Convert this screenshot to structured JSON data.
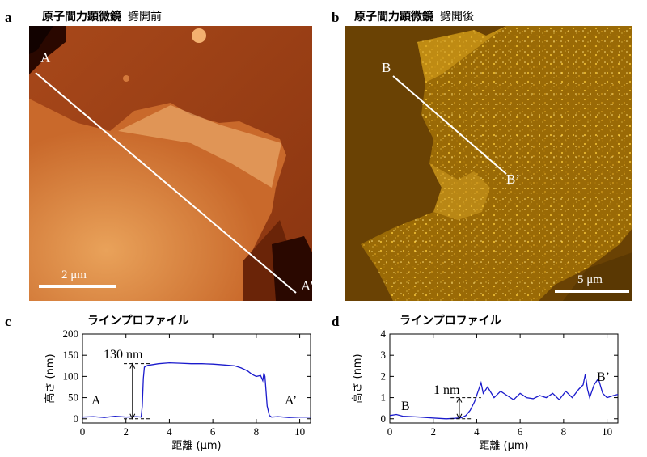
{
  "panels": {
    "a": {
      "letter": "a",
      "title": "原子間力顕微鏡",
      "subtitle": "劈開前",
      "start_label": "A",
      "end_label": "A’",
      "scale_label": "2 μm"
    },
    "b": {
      "letter": "b",
      "title": "原子間力顕微鏡",
      "subtitle": "劈開後",
      "start_label": "B",
      "end_label": "B’",
      "scale_label": "5 μm"
    },
    "c": {
      "letter": "c",
      "title": "ラインプロファイル"
    },
    "d": {
      "letter": "d",
      "title": "ラインプロファイル"
    }
  },
  "chart_data": [
    {
      "type": "line",
      "xlabel": "距離 (μm)",
      "ylabel": "高さ (nm)",
      "xlim": [
        0,
        10.5
      ],
      "ylim": [
        -10,
        200
      ],
      "xticks": [
        0,
        2,
        4,
        6,
        8,
        10
      ],
      "yticks": [
        0,
        50,
        100,
        150,
        200
      ],
      "start_label": "A",
      "end_label": "A’",
      "annotation": "130 nm",
      "annotation_range": [
        0,
        130
      ],
      "series": [
        {
          "color": "#1a1acc",
          "x": [
            0,
            0.5,
            1.0,
            1.5,
            2.0,
            2.5,
            2.7,
            2.75,
            2.8,
            2.85,
            3.0,
            3.5,
            4.0,
            4.5,
            5.0,
            5.5,
            6.0,
            6.5,
            7.0,
            7.3,
            7.6,
            7.8,
            8.0,
            8.2,
            8.3,
            8.35,
            8.4,
            8.5,
            8.6,
            8.7,
            9.0,
            9.5,
            10.0,
            10.5
          ],
          "y": [
            4,
            5,
            3,
            6,
            4,
            5,
            4,
            30,
            95,
            122,
            126,
            130,
            132,
            131,
            130,
            130,
            129,
            127,
            125,
            120,
            113,
            105,
            100,
            102,
            90,
            108,
            100,
            30,
            8,
            4,
            5,
            3,
            4,
            4
          ]
        }
      ]
    },
    {
      "type": "line",
      "xlabel": "距離 (μm)",
      "ylabel": "高さ (nm)",
      "xlim": [
        0,
        10.5
      ],
      "ylim": [
        -0.2,
        4
      ],
      "xticks": [
        0,
        2,
        4,
        6,
        8,
        10
      ],
      "yticks": [
        0,
        1,
        2,
        3,
        4
      ],
      "start_label": "B",
      "end_label": "B’",
      "annotation": "1 nm",
      "annotation_range": [
        0,
        1
      ],
      "series": [
        {
          "color": "#1a1acc",
          "x": [
            0,
            0.3,
            0.6,
            1.0,
            1.4,
            1.8,
            2.2,
            2.6,
            3.0,
            3.3,
            3.5,
            3.7,
            3.9,
            4.1,
            4.2,
            4.3,
            4.5,
            4.8,
            5.1,
            5.4,
            5.7,
            6.0,
            6.3,
            6.6,
            6.9,
            7.2,
            7.5,
            7.8,
            8.1,
            8.4,
            8.7,
            8.9,
            9.0,
            9.1,
            9.2,
            9.4,
            9.6,
            9.8,
            10.0,
            10.3,
            10.5
          ],
          "y": [
            0.15,
            0.2,
            0.12,
            0.1,
            0.08,
            0.05,
            0.02,
            0.0,
            0.02,
            0.05,
            0.15,
            0.4,
            0.8,
            1.4,
            1.7,
            1.2,
            1.5,
            1.0,
            1.3,
            1.1,
            0.9,
            1.2,
            1.0,
            0.95,
            1.1,
            1.0,
            1.2,
            0.9,
            1.3,
            1.0,
            1.4,
            1.6,
            2.1,
            1.4,
            1.0,
            1.6,
            1.9,
            1.2,
            1.0,
            1.1,
            1.15
          ]
        }
      ]
    }
  ]
}
